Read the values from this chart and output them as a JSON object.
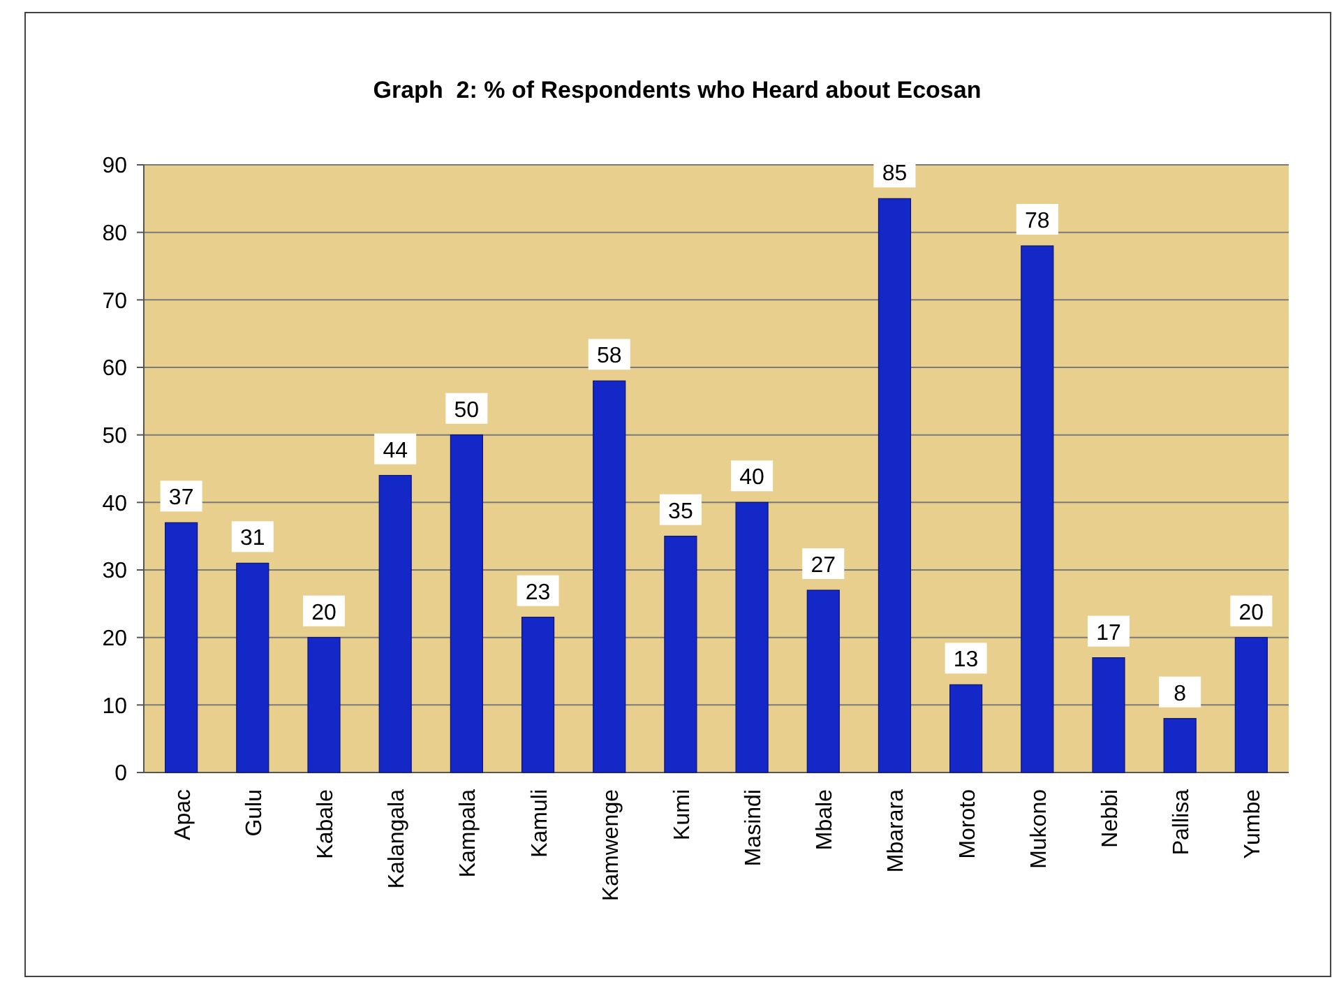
{
  "chart_data": {
    "type": "bar",
    "title": "Graph  2: % of Respondents who Heard about Ecosan",
    "categories": [
      "Apac",
      "Gulu",
      "Kabale",
      "Kalangala",
      "Kampala",
      "Kamuli",
      "Kamwenge",
      "Kumi",
      "Masindi",
      "Mbale",
      "Mbarara",
      "Moroto",
      "Mukono",
      "Nebbi",
      "Pallisa",
      "Yumbe"
    ],
    "values": [
      37,
      31,
      20,
      44,
      50,
      23,
      58,
      35,
      40,
      27,
      85,
      13,
      78,
      17,
      8,
      20
    ],
    "color": "#1428c8",
    "ylim": [
      0,
      90
    ],
    "yticks": [
      0,
      10,
      20,
      30,
      40,
      50,
      60,
      70,
      80,
      90
    ],
    "grid": "y",
    "data_labels": true
  }
}
